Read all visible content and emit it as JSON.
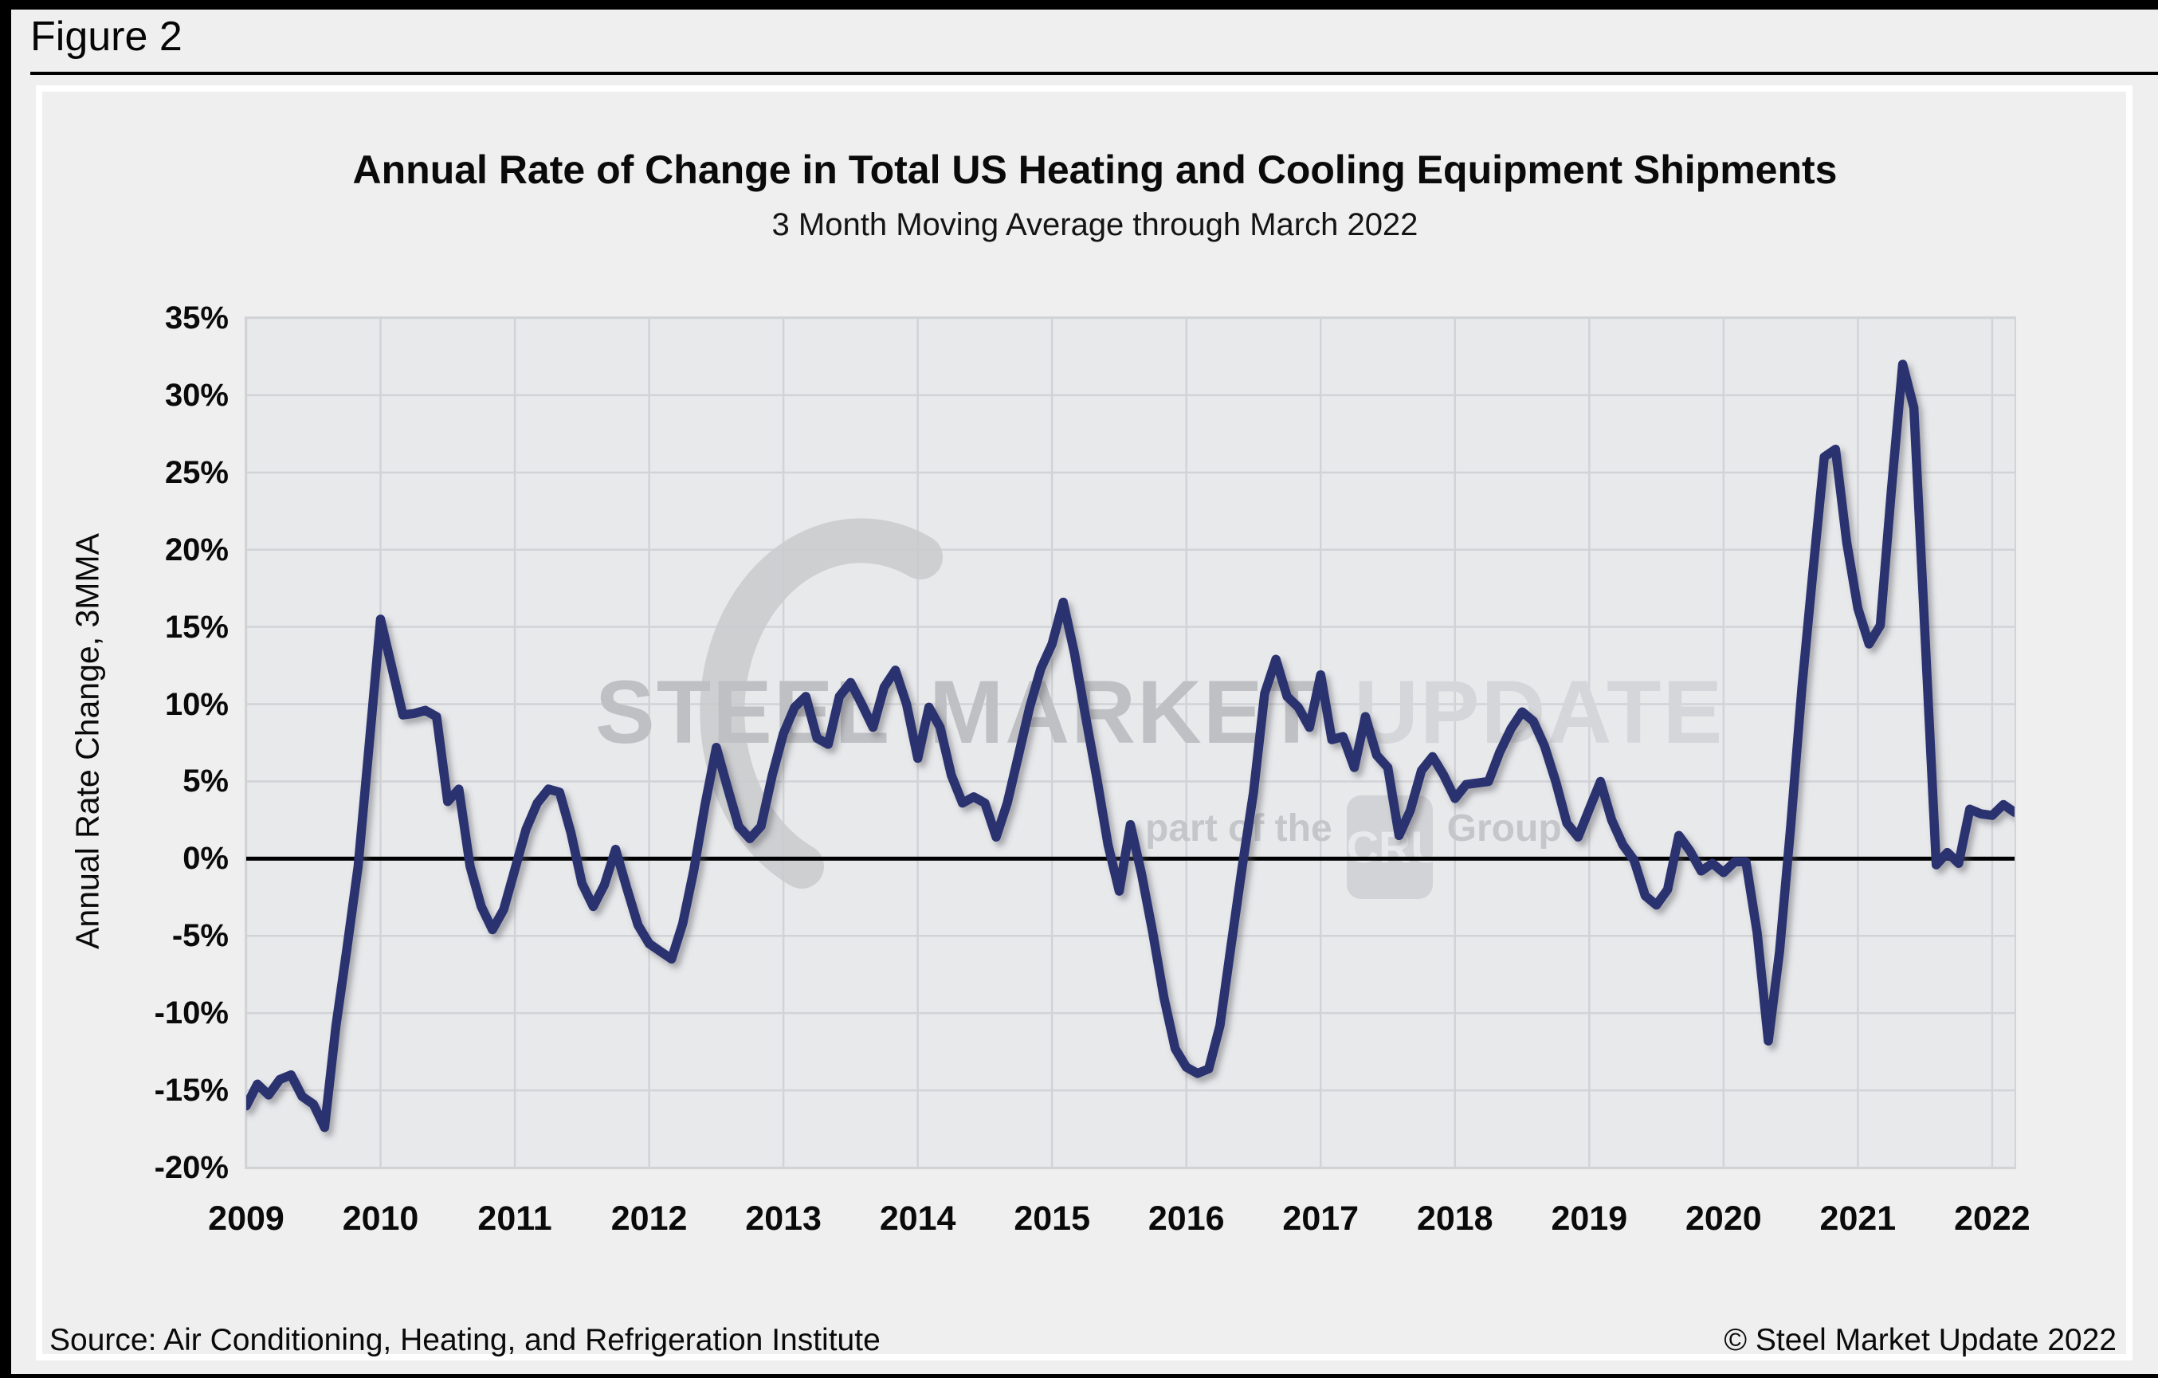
{
  "figure_label": "Figure 2",
  "title": "Annual Rate of Change in Total US Heating and Cooling Equipment Shipments",
  "subtitle": "3 Month Moving Average through March 2022",
  "source": "Source: Air Conditioning, Heating, and Refrigeration Institute",
  "copyright": "© Steel Market Update 2022",
  "watermark": {
    "word1": "STEEL",
    "word2": "MARKET",
    "word3": "UPDATE",
    "tagline_prefix": "part of the",
    "badge": "CRU",
    "tagline_suffix": "Group"
  },
  "colors": {
    "line": "#2a316f",
    "zero_line": "#000000",
    "grid": "#d2d3d7",
    "plot_bg": "#e8e9eb",
    "panel_bg": "#efeff0",
    "watermark_dark": "#bfc0c4",
    "watermark_light": "#d5d6d9"
  },
  "chart_data": {
    "type": "line",
    "title": "Annual Rate of Change in Total US Heating and Cooling Equipment Shipments",
    "subtitle": "3 Month Moving Average through March 2022",
    "xlabel": "",
    "ylabel": "Annual Rate Change, 3MMA",
    "ylim": [
      -20,
      35
    ],
    "grid": true,
    "legend_position": "none",
    "y_ticks": [
      35,
      30,
      25,
      20,
      15,
      10,
      5,
      0,
      -5,
      -10,
      -15,
      -20
    ],
    "y_tick_labels": [
      "35%",
      "30%",
      "25%",
      "20%",
      "15%",
      "10%",
      "5%",
      "0%",
      "-5%",
      "-10%",
      "-15%",
      "-20%"
    ],
    "x_tick_labels": [
      "2009",
      "2010",
      "2011",
      "2012",
      "2013",
      "2014",
      "2015",
      "2016",
      "2017",
      "2018",
      "2019",
      "2020",
      "2021",
      "2022"
    ],
    "x_start": "2009-01",
    "x_end": "2022-03",
    "frequency": "monthly",
    "months_per_x_tick": 12,
    "series": [
      {
        "name": "Annual rate of change in total US heating and cooling equipment shipments, 3MMA (%)",
        "values": [
          -16.0,
          -14.6,
          -15.3,
          -14.3,
          -14.0,
          -15.4,
          -15.9,
          -17.4,
          -10.9,
          -5.8,
          -0.5,
          7.5,
          15.5,
          12.4,
          9.3,
          9.4,
          9.6,
          9.2,
          3.7,
          4.5,
          -0.5,
          -3.1,
          -4.6,
          -3.3,
          -0.7,
          1.9,
          3.6,
          4.5,
          4.3,
          1.7,
          -1.6,
          -3.1,
          -1.7,
          0.6,
          -1.9,
          -4.3,
          -5.5,
          -6.0,
          -6.5,
          -4.2,
          -0.7,
          3.5,
          7.2,
          4.6,
          2.1,
          1.3,
          2.1,
          5.4,
          8.1,
          9.8,
          10.5,
          7.8,
          7.4,
          10.5,
          11.4,
          10.0,
          8.5,
          11.1,
          12.2,
          10.0,
          6.5,
          9.8,
          8.5,
          5.4,
          3.6,
          4.0,
          3.6,
          1.4,
          3.6,
          6.7,
          9.8,
          12.3,
          13.9,
          16.6,
          13.3,
          9.2,
          5.2,
          0.9,
          -2.1,
          2.2,
          -1.0,
          -4.8,
          -9.0,
          -12.3,
          -13.5,
          -13.9,
          -13.6,
          -10.8,
          -5.6,
          -0.5,
          4.3,
          10.7,
          12.9,
          10.5,
          9.8,
          8.5,
          11.9,
          7.7,
          7.9,
          5.9,
          9.2,
          6.7,
          5.9,
          1.5,
          3.1,
          5.7,
          6.6,
          5.4,
          3.9,
          4.8,
          4.9,
          5.0,
          6.9,
          8.4,
          9.5,
          8.9,
          7.3,
          5.0,
          2.3,
          1.4,
          3.2,
          5.0,
          2.5,
          0.9,
          -0.1,
          -2.4,
          -3.0,
          -2.0,
          1.5,
          0.5,
          -0.8,
          -0.3,
          -0.9,
          -0.2,
          -0.2,
          -4.8,
          -11.8,
          -6.0,
          2.1,
          11.1,
          18.7,
          26.0,
          26.5,
          20.5,
          16.2,
          13.9,
          15.1,
          23.9,
          32.0,
          29.2,
          14.5,
          -0.4,
          0.4,
          -0.3,
          3.2,
          2.9,
          2.8,
          3.5,
          3.0
        ]
      }
    ]
  }
}
